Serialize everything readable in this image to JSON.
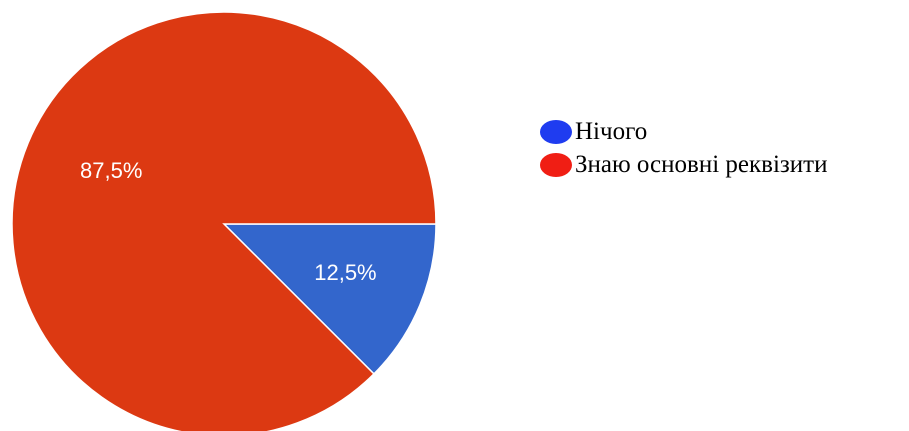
{
  "chart_data": {
    "type": "pie",
    "start_angle_deg": 0,
    "direction": "clockwise",
    "slices": [
      {
        "name": "Нічого",
        "value": 12.5,
        "label": "12,5%",
        "color": "#3366cc",
        "legend_color": "#1f3cf0"
      },
      {
        "name": "Знаю основні реквізити",
        "value": 87.5,
        "label": "87,5%",
        "color": "#dc3912",
        "legend_color": "#f01e14"
      }
    ],
    "legend_position": "right"
  }
}
